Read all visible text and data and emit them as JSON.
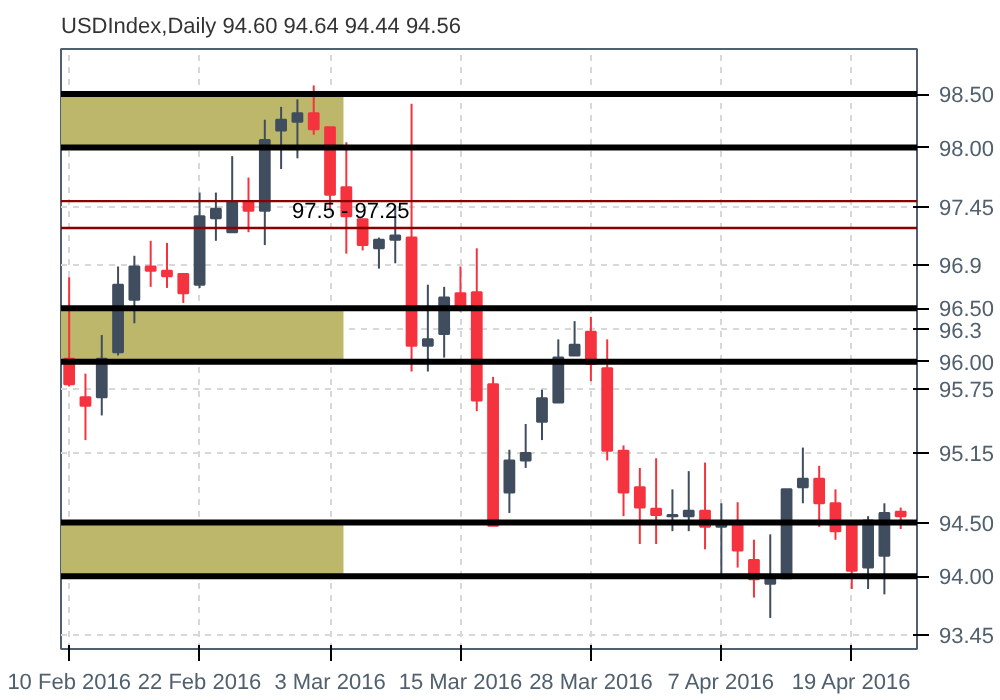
{
  "chart_data": {
    "type": "candlestick",
    "title": "USDIndex,Daily  94.60 94.64 94.44 94.56",
    "categories": [
      "10 Feb 2016",
      null,
      null,
      null,
      null,
      null,
      null,
      null,
      "22 Feb 2016",
      null,
      null,
      null,
      null,
      null,
      null,
      null,
      "3 Mar 2016",
      null,
      null,
      null,
      null,
      null,
      null,
      null,
      "15 Mar 2016",
      null,
      null,
      null,
      null,
      null,
      null,
      null,
      "28 Mar 2016",
      null,
      null,
      null,
      null,
      null,
      null,
      null,
      "7 Apr 2016",
      null,
      null,
      null,
      null,
      null,
      null,
      null,
      "19 Apr 2016",
      null,
      null,
      null
    ],
    "ohlc": [
      [
        96.03,
        96.79,
        95.77,
        95.79
      ],
      [
        95.67,
        95.89,
        95.27,
        95.59
      ],
      [
        95.67,
        96.25,
        95.5,
        96.03
      ],
      [
        96.09,
        96.89,
        96.06,
        96.72
      ],
      [
        96.58,
        96.99,
        96.36,
        96.89
      ],
      [
        96.89,
        97.13,
        96.7,
        96.85
      ],
      [
        96.85,
        97.11,
        96.69,
        96.8
      ],
      [
        96.82,
        96.82,
        96.55,
        96.64
      ],
      [
        96.72,
        97.58,
        96.69,
        97.36
      ],
      [
        97.34,
        97.58,
        97.13,
        97.43
      ],
      [
        97.21,
        97.92,
        97.21,
        97.5
      ],
      [
        97.5,
        97.72,
        97.21,
        97.41
      ],
      [
        97.41,
        98.26,
        97.09,
        98.07
      ],
      [
        98.16,
        98.38,
        97.8,
        98.26
      ],
      [
        98.24,
        98.45,
        97.9,
        98.32
      ],
      [
        98.32,
        98.58,
        98.12,
        98.17
      ],
      [
        98.19,
        98.19,
        97.43,
        97.56
      ],
      [
        97.63,
        98.05,
        97.01,
        97.36
      ],
      [
        97.33,
        97.33,
        97.04,
        97.09
      ],
      [
        97.06,
        97.16,
        96.87,
        97.14
      ],
      [
        97.14,
        97.46,
        96.92,
        97.18
      ],
      [
        97.16,
        98.41,
        95.91,
        96.15
      ],
      [
        96.15,
        96.72,
        95.91,
        96.21
      ],
      [
        96.26,
        96.7,
        96.04,
        96.6
      ],
      [
        96.64,
        96.89,
        96.47,
        96.5
      ],
      [
        96.65,
        97.06,
        95.54,
        95.64
      ],
      [
        95.79,
        95.86,
        94.47,
        94.47
      ],
      [
        94.78,
        95.18,
        94.59,
        95.08
      ],
      [
        95.08,
        95.42,
        95.01,
        95.15
      ],
      [
        95.44,
        95.74,
        95.27,
        95.66
      ],
      [
        95.62,
        96.21,
        95.62,
        96.04
      ],
      [
        96.06,
        96.38,
        96.06,
        96.16
      ],
      [
        96.28,
        96.42,
        95.82,
        95.98
      ],
      [
        95.94,
        96.21,
        95.08,
        95.17
      ],
      [
        95.17,
        95.22,
        94.56,
        94.78
      ],
      [
        94.83,
        95.01,
        94.3,
        94.64
      ],
      [
        94.63,
        95.1,
        94.3,
        94.57
      ],
      [
        94.56,
        94.81,
        94.42,
        94.57
      ],
      [
        94.56,
        94.98,
        94.42,
        94.61
      ],
      [
        94.61,
        95.06,
        94.25,
        94.46
      ],
      [
        94.46,
        94.68,
        94.02,
        94.49
      ],
      [
        94.49,
        94.69,
        94.08,
        94.24
      ],
      [
        94.15,
        94.34,
        93.8,
        93.97
      ],
      [
        93.93,
        94.39,
        93.61,
        93.98
      ],
      [
        93.98,
        94.81,
        93.98,
        94.81
      ],
      [
        94.83,
        95.2,
        94.68,
        94.91
      ],
      [
        94.91,
        95.03,
        94.46,
        94.68
      ],
      [
        94.68,
        94.81,
        94.34,
        94.42
      ],
      [
        94.49,
        94.52,
        93.88,
        94.05
      ],
      [
        94.08,
        94.56,
        93.88,
        94.52
      ],
      [
        94.19,
        94.68,
        93.83,
        94.59
      ],
      [
        94.6,
        94.64,
        94.44,
        94.56
      ]
    ],
    "colors": [
      "#f5333f",
      "#f5333f",
      "#3f4d5e",
      "#3f4d5e",
      "#3f4d5e",
      "#f5333f",
      "#f5333f",
      "#f5333f",
      "#3f4d5e",
      "#3f4d5e",
      "#3f4d5e",
      "#f5333f",
      "#3f4d5e",
      "#3f4d5e",
      "#3f4d5e",
      "#f5333f",
      "#f5333f",
      "#f5333f",
      "#f5333f",
      "#3f4d5e",
      "#3f4d5e",
      "#f5333f",
      "#3f4d5e",
      "#3f4d5e",
      "#f5333f",
      "#f5333f",
      "#f5333f",
      "#3f4d5e",
      "#3f4d5e",
      "#3f4d5e",
      "#3f4d5e",
      "#3f4d5e",
      "#f5333f",
      "#f5333f",
      "#f5333f",
      "#f5333f",
      "#f5333f",
      "#3f4d5e",
      "#3f4d5e",
      "#f5333f",
      "#3f4d5e",
      "#f5333f",
      "#f5333f",
      "#3f4d5e",
      "#3f4d5e",
      "#3f4d5e",
      "#f5333f",
      "#f5333f",
      "#f5333f",
      "#3f4d5e",
      "#3f4d5e",
      "#f5333f"
    ],
    "ylim": [
      93.32,
      98.92
    ],
    "yticks": [
      97.45,
      96.9,
      96.3,
      95.75,
      95.15,
      93.45
    ],
    "grid": true,
    "ref_lines": [
      {
        "axis": "y",
        "value": 98.5,
        "label": "98.50",
        "color": "#000000"
      },
      {
        "axis": "y",
        "value": 98.0,
        "label": "98.00",
        "color": "#000000"
      },
      {
        "axis": "y",
        "value": 96.5,
        "label": "96.50",
        "color": "#000000"
      },
      {
        "axis": "y",
        "value": 96.0,
        "label": "96.00",
        "color": "#000000"
      },
      {
        "axis": "y",
        "value": 94.5,
        "label": "94.50",
        "color": "#000000"
      },
      {
        "axis": "y",
        "value": 94.0,
        "label": "94.00",
        "color": "#000000"
      },
      {
        "axis": "y",
        "value": 97.5,
        "color": "#8b0000"
      },
      {
        "axis": "y",
        "value": 97.25,
        "color": "#8b0000"
      }
    ],
    "bands": [
      {
        "axis": "y",
        "from": 98.0,
        "to": 98.5,
        "color": "#bdb76b"
      },
      {
        "axis": "y",
        "from": 96.0,
        "to": 96.5,
        "color": "#bdb76b"
      },
      {
        "axis": "y",
        "from": 94.0,
        "to": 94.5,
        "color": "#bdb76b"
      }
    ],
    "annotations": [
      {
        "text": "97.5 - 97.25",
        "y": 97.25
      }
    ]
  }
}
